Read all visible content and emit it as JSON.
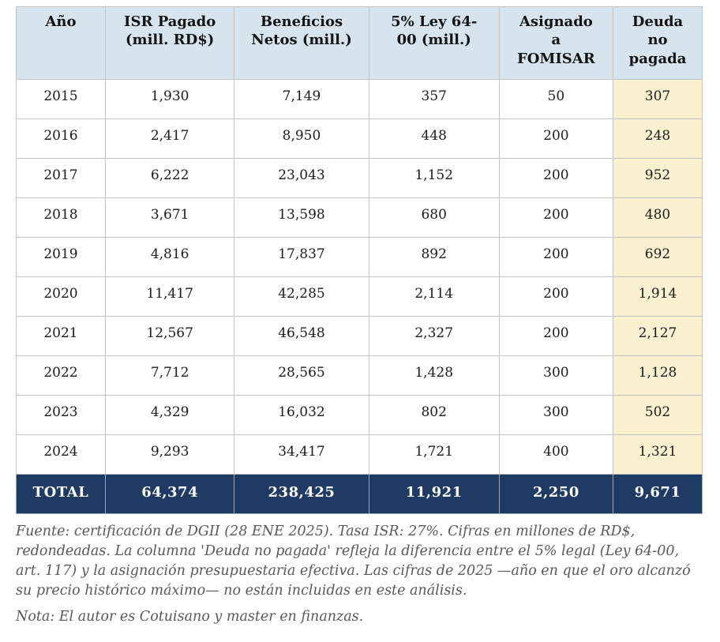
{
  "table": {
    "headers": [
      "Año",
      "ISR Pagado\n(mill. RD$)",
      "Beneficios\nNetos (mill.)",
      "5% Ley 64-\n00 (mill.)",
      "Asignado\na\nFOMISAR",
      "Deuda\nno\npagada"
    ],
    "rows": [
      [
        "2015",
        "1,930",
        "7,149",
        "357",
        "50",
        "307"
      ],
      [
        "2016",
        "2,417",
        "8,950",
        "448",
        "200",
        "248"
      ],
      [
        "2017",
        "6,222",
        "23,043",
        "1,152",
        "200",
        "952"
      ],
      [
        "2018",
        "3,671",
        "13,598",
        "680",
        "200",
        "480"
      ],
      [
        "2019",
        "4,816",
        "17,837",
        "892",
        "200",
        "692"
      ],
      [
        "2020",
        "11,417",
        "42,285",
        "2,114",
        "200",
        "1,914"
      ],
      [
        "2021",
        "12,567",
        "46,548",
        "2,327",
        "200",
        "2,127"
      ],
      [
        "2022",
        "7,712",
        "28,565",
        "1,428",
        "300",
        "1,128"
      ],
      [
        "2023",
        "4,329",
        "16,032",
        "802",
        "300",
        "502"
      ],
      [
        "2024",
        "9,293",
        "34,417",
        "1,721",
        "400",
        "1,321"
      ]
    ],
    "total_label": "TOTAL",
    "total": [
      "64,374",
      "238,425",
      "11,921",
      "2,250",
      "9,671"
    ]
  },
  "notes": {
    "fuente": "Fuente: certificación de DGII (28 ENE 2025). Tasa ISR: 27%. Cifras en millones de RD$, redondeadas. La columna 'Deuda no pagada' refleja la diferencia entre el 5% legal (Ley 64-00, art. 117) y la asignación presupuestaria efectiva. Las cifras de 2025 —año en que el oro alcanzó su precio histórico máximo— no están incluidas en este análisis.",
    "nota": "Nota: El autor es Cotuisano y master en finanzas."
  },
  "colors": {
    "header_bg": "#d6e5ed",
    "highlight_col_bg": "#fbf0cf",
    "total_row_bg": "#1f3b63",
    "border": "#c2c2c2",
    "note_text": "#595959"
  }
}
